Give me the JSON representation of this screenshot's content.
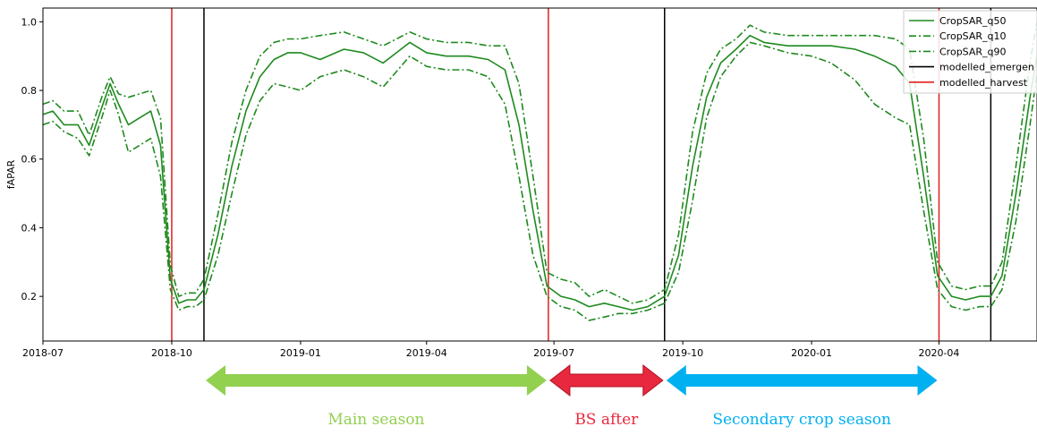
{
  "chart_data": {
    "type": "line",
    "title": "",
    "xlabel": "",
    "ylabel": "fAPAR",
    "x_ticks": [
      "2018-07",
      "2018-10",
      "2019-01",
      "2019-04",
      "2019-07",
      "2019-10",
      "2020-01",
      "2020-04"
    ],
    "y_ticks": [
      "0.2",
      "0.4",
      "0.6",
      "0.8",
      "1.0"
    ],
    "xlim": [
      "2018-07-01",
      "2020-06-10"
    ],
    "ylim": [
      0.07,
      1.04
    ],
    "grid": false,
    "legend_position": "top-right",
    "series": [
      {
        "name": "CropSAR_q50",
        "color": "#1e8a1e",
        "style": "solid",
        "points": [
          [
            "2018-07-01",
            0.73
          ],
          [
            "2018-07-08",
            0.74
          ],
          [
            "2018-07-16",
            0.7
          ],
          [
            "2018-07-26",
            0.7
          ],
          [
            "2018-08-03",
            0.64
          ],
          [
            "2018-08-12",
            0.75
          ],
          [
            "2018-08-18",
            0.82
          ],
          [
            "2018-08-24",
            0.76
          ],
          [
            "2018-08-31",
            0.7
          ],
          [
            "2018-09-08",
            0.72
          ],
          [
            "2018-09-16",
            0.74
          ],
          [
            "2018-09-23",
            0.64
          ],
          [
            "2018-09-30",
            0.25
          ],
          [
            "2018-10-06",
            0.18
          ],
          [
            "2018-10-12",
            0.19
          ],
          [
            "2018-10-18",
            0.19
          ],
          [
            "2018-10-24",
            0.22
          ],
          [
            "2018-11-03",
            0.38
          ],
          [
            "2018-11-13",
            0.58
          ],
          [
            "2018-11-23",
            0.74
          ],
          [
            "2018-12-03",
            0.84
          ],
          [
            "2018-12-13",
            0.89
          ],
          [
            "2018-12-23",
            0.91
          ],
          [
            "2019-01-01",
            0.91
          ],
          [
            "2019-01-15",
            0.89
          ],
          [
            "2019-02-01",
            0.92
          ],
          [
            "2019-02-15",
            0.91
          ],
          [
            "2019-03-01",
            0.88
          ],
          [
            "2019-03-20",
            0.94
          ],
          [
            "2019-04-01",
            0.91
          ],
          [
            "2019-04-15",
            0.9
          ],
          [
            "2019-05-01",
            0.9
          ],
          [
            "2019-05-15",
            0.89
          ],
          [
            "2019-05-27",
            0.86
          ],
          [
            "2019-06-06",
            0.7
          ],
          [
            "2019-06-16",
            0.45
          ],
          [
            "2019-06-26",
            0.23
          ],
          [
            "2019-07-06",
            0.2
          ],
          [
            "2019-07-16",
            0.19
          ],
          [
            "2019-07-26",
            0.17
          ],
          [
            "2019-08-06",
            0.18
          ],
          [
            "2019-08-16",
            0.17
          ],
          [
            "2019-08-26",
            0.16
          ],
          [
            "2019-09-06",
            0.17
          ],
          [
            "2019-09-18",
            0.2
          ],
          [
            "2019-09-28",
            0.32
          ],
          [
            "2019-10-08",
            0.58
          ],
          [
            "2019-10-18",
            0.78
          ],
          [
            "2019-10-28",
            0.88
          ],
          [
            "2019-11-08",
            0.92
          ],
          [
            "2019-11-18",
            0.96
          ],
          [
            "2019-11-28",
            0.94
          ],
          [
            "2019-12-15",
            0.93
          ],
          [
            "2020-01-01",
            0.93
          ],
          [
            "2020-01-15",
            0.93
          ],
          [
            "2020-02-01",
            0.92
          ],
          [
            "2020-02-15",
            0.9
          ],
          [
            "2020-03-01",
            0.87
          ],
          [
            "2020-03-11",
            0.82
          ],
          [
            "2020-03-21",
            0.55
          ],
          [
            "2020-03-31",
            0.26
          ],
          [
            "2020-04-10",
            0.2
          ],
          [
            "2020-04-20",
            0.19
          ],
          [
            "2020-04-30",
            0.2
          ],
          [
            "2020-05-08",
            0.2
          ],
          [
            "2020-05-16",
            0.26
          ],
          [
            "2020-05-26",
            0.5
          ],
          [
            "2020-06-05",
            0.78
          ],
          [
            "2020-06-10",
            0.9
          ]
        ]
      },
      {
        "name": "CropSAR_q10",
        "color": "#1e8a1e",
        "style": "dashdot",
        "points": [
          [
            "2018-07-01",
            0.7
          ],
          [
            "2018-07-08",
            0.71
          ],
          [
            "2018-07-16",
            0.68
          ],
          [
            "2018-07-26",
            0.66
          ],
          [
            "2018-08-03",
            0.61
          ],
          [
            "2018-08-12",
            0.72
          ],
          [
            "2018-08-18",
            0.8
          ],
          [
            "2018-08-24",
            0.73
          ],
          [
            "2018-08-31",
            0.62
          ],
          [
            "2018-09-08",
            0.64
          ],
          [
            "2018-09-16",
            0.66
          ],
          [
            "2018-09-23",
            0.55
          ],
          [
            "2018-09-30",
            0.22
          ],
          [
            "2018-10-06",
            0.16
          ],
          [
            "2018-10-12",
            0.17
          ],
          [
            "2018-10-18",
            0.17
          ],
          [
            "2018-10-24",
            0.19
          ],
          [
            "2018-11-03",
            0.32
          ],
          [
            "2018-11-13",
            0.5
          ],
          [
            "2018-11-23",
            0.67
          ],
          [
            "2018-12-03",
            0.77
          ],
          [
            "2018-12-13",
            0.82
          ],
          [
            "2018-12-23",
            0.81
          ],
          [
            "2019-01-01",
            0.8
          ],
          [
            "2019-01-15",
            0.84
          ],
          [
            "2019-02-01",
            0.86
          ],
          [
            "2019-02-15",
            0.84
          ],
          [
            "2019-03-01",
            0.81
          ],
          [
            "2019-03-20",
            0.9
          ],
          [
            "2019-04-01",
            0.87
          ],
          [
            "2019-04-15",
            0.86
          ],
          [
            "2019-05-01",
            0.86
          ],
          [
            "2019-05-15",
            0.84
          ],
          [
            "2019-05-27",
            0.76
          ],
          [
            "2019-06-06",
            0.55
          ],
          [
            "2019-06-16",
            0.32
          ],
          [
            "2019-06-26",
            0.2
          ],
          [
            "2019-07-06",
            0.17
          ],
          [
            "2019-07-16",
            0.16
          ],
          [
            "2019-07-26",
            0.13
          ],
          [
            "2019-08-06",
            0.14
          ],
          [
            "2019-08-16",
            0.15
          ],
          [
            "2019-08-26",
            0.15
          ],
          [
            "2019-09-06",
            0.16
          ],
          [
            "2019-09-18",
            0.18
          ],
          [
            "2019-09-28",
            0.27
          ],
          [
            "2019-10-08",
            0.48
          ],
          [
            "2019-10-18",
            0.72
          ],
          [
            "2019-10-28",
            0.84
          ],
          [
            "2019-11-08",
            0.9
          ],
          [
            "2019-11-18",
            0.94
          ],
          [
            "2019-11-28",
            0.93
          ],
          [
            "2019-12-15",
            0.91
          ],
          [
            "2020-01-01",
            0.9
          ],
          [
            "2020-01-15",
            0.88
          ],
          [
            "2020-02-01",
            0.83
          ],
          [
            "2020-02-15",
            0.76
          ],
          [
            "2020-03-01",
            0.72
          ],
          [
            "2020-03-11",
            0.7
          ],
          [
            "2020-03-21",
            0.45
          ],
          [
            "2020-03-31",
            0.22
          ],
          [
            "2020-04-10",
            0.17
          ],
          [
            "2020-04-20",
            0.16
          ],
          [
            "2020-04-30",
            0.17
          ],
          [
            "2020-05-08",
            0.17
          ],
          [
            "2020-05-16",
            0.22
          ],
          [
            "2020-05-26",
            0.42
          ],
          [
            "2020-06-05",
            0.7
          ],
          [
            "2020-06-10",
            0.85
          ]
        ]
      },
      {
        "name": "CropSAR_q90",
        "color": "#1e8a1e",
        "style": "dashdot",
        "points": [
          [
            "2018-07-01",
            0.76
          ],
          [
            "2018-07-08",
            0.77
          ],
          [
            "2018-07-16",
            0.74
          ],
          [
            "2018-07-26",
            0.74
          ],
          [
            "2018-08-03",
            0.67
          ],
          [
            "2018-08-12",
            0.78
          ],
          [
            "2018-08-18",
            0.84
          ],
          [
            "2018-08-24",
            0.79
          ],
          [
            "2018-08-31",
            0.78
          ],
          [
            "2018-09-08",
            0.79
          ],
          [
            "2018-09-16",
            0.8
          ],
          [
            "2018-09-23",
            0.72
          ],
          [
            "2018-09-30",
            0.29
          ],
          [
            "2018-10-06",
            0.2
          ],
          [
            "2018-10-12",
            0.21
          ],
          [
            "2018-10-18",
            0.21
          ],
          [
            "2018-10-24",
            0.25
          ],
          [
            "2018-11-03",
            0.44
          ],
          [
            "2018-11-13",
            0.65
          ],
          [
            "2018-11-23",
            0.8
          ],
          [
            "2018-12-03",
            0.9
          ],
          [
            "2018-12-13",
            0.94
          ],
          [
            "2018-12-23",
            0.95
          ],
          [
            "2019-01-01",
            0.95
          ],
          [
            "2019-01-15",
            0.96
          ],
          [
            "2019-02-01",
            0.97
          ],
          [
            "2019-02-15",
            0.95
          ],
          [
            "2019-03-01",
            0.93
          ],
          [
            "2019-03-20",
            0.97
          ],
          [
            "2019-04-01",
            0.95
          ],
          [
            "2019-04-15",
            0.94
          ],
          [
            "2019-05-01",
            0.94
          ],
          [
            "2019-05-15",
            0.93
          ],
          [
            "2019-05-27",
            0.93
          ],
          [
            "2019-06-06",
            0.82
          ],
          [
            "2019-06-16",
            0.55
          ],
          [
            "2019-06-26",
            0.27
          ],
          [
            "2019-07-06",
            0.25
          ],
          [
            "2019-07-16",
            0.24
          ],
          [
            "2019-07-26",
            0.2
          ],
          [
            "2019-08-06",
            0.22
          ],
          [
            "2019-08-16",
            0.2
          ],
          [
            "2019-08-26",
            0.18
          ],
          [
            "2019-09-06",
            0.19
          ],
          [
            "2019-09-18",
            0.22
          ],
          [
            "2019-09-28",
            0.38
          ],
          [
            "2019-10-08",
            0.68
          ],
          [
            "2019-10-18",
            0.85
          ],
          [
            "2019-10-28",
            0.92
          ],
          [
            "2019-11-08",
            0.95
          ],
          [
            "2019-11-18",
            0.99
          ],
          [
            "2019-11-28",
            0.97
          ],
          [
            "2019-12-15",
            0.96
          ],
          [
            "2020-01-01",
            0.96
          ],
          [
            "2020-01-15",
            0.96
          ],
          [
            "2020-02-01",
            0.96
          ],
          [
            "2020-02-15",
            0.96
          ],
          [
            "2020-03-01",
            0.95
          ],
          [
            "2020-03-11",
            0.92
          ],
          [
            "2020-03-21",
            0.66
          ],
          [
            "2020-03-31",
            0.3
          ],
          [
            "2020-04-10",
            0.23
          ],
          [
            "2020-04-20",
            0.22
          ],
          [
            "2020-04-30",
            0.23
          ],
          [
            "2020-05-08",
            0.23
          ],
          [
            "2020-05-16",
            0.3
          ],
          [
            "2020-05-26",
            0.58
          ],
          [
            "2020-06-05",
            0.88
          ],
          [
            "2020-06-10",
            1.0
          ]
        ]
      }
    ],
    "vertical_lines": [
      {
        "name": "modelled_emergence",
        "color": "#000000",
        "dates": [
          "2018-10-24",
          "2019-09-18",
          "2020-05-08"
        ]
      },
      {
        "name": "modelled_harvest",
        "color": "#e02020",
        "dates": [
          "2018-10-01",
          "2019-06-27",
          "2020-04-01"
        ]
      }
    ],
    "legend": [
      {
        "label": "CropSAR_q50",
        "color": "#1e8a1e",
        "style": "solid"
      },
      {
        "label": "CropSAR_q10",
        "color": "#1e8a1e",
        "style": "dashdot"
      },
      {
        "label": "CropSAR_q90",
        "color": "#1e8a1e",
        "style": "dashdot"
      },
      {
        "label": "modelled_emergen",
        "color": "#000000",
        "style": "solid"
      },
      {
        "label": "modelled_harvest",
        "color": "#e02020",
        "style": "solid"
      }
    ],
    "annotations": [
      {
        "label": "Main season",
        "color": "#92d050",
        "from": "2018-10-24",
        "to": "2019-06-27"
      },
      {
        "label": "BS after",
        "color": "#e8283e",
        "from": "2019-06-27",
        "to": "2019-09-18"
      },
      {
        "label": "Secondary crop season",
        "color": "#00b0f0",
        "from": "2019-09-18",
        "to": "2020-04-01"
      }
    ]
  }
}
